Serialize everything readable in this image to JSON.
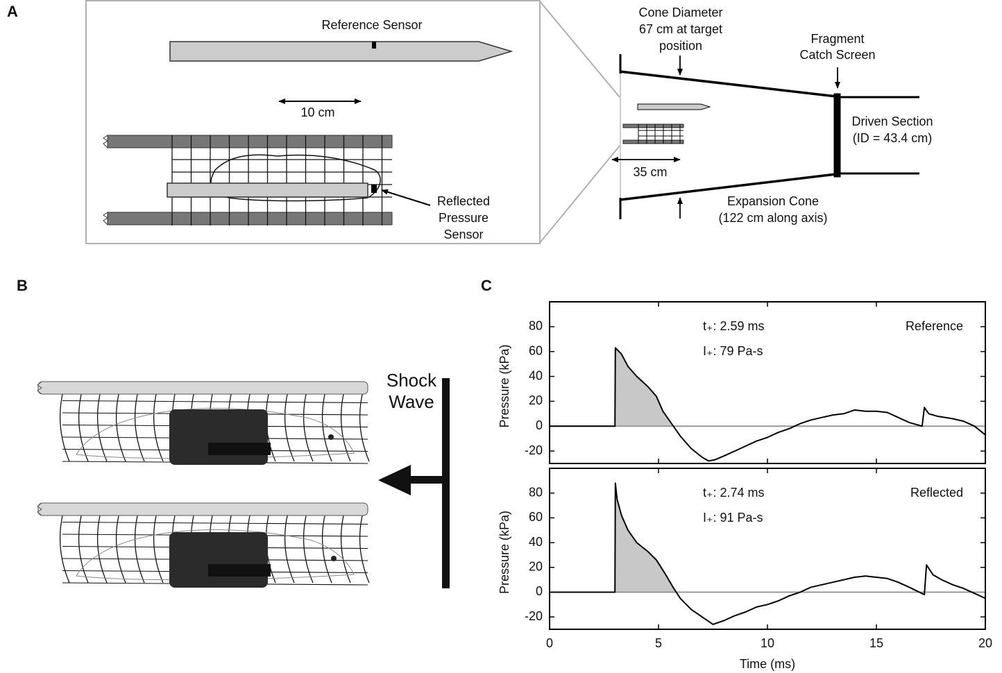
{
  "panels": {
    "a": {
      "label": "A",
      "reference_sensor": "Reference  Sensor",
      "scale_short": "10 cm",
      "reflected_sensor": [
        "Reflected",
        "Pressure",
        "Sensor"
      ],
      "cone_diameter": [
        "Cone Diameter",
        "67 cm at target",
        "position"
      ],
      "fragment_screen": [
        "Fragment",
        "Catch Screen"
      ],
      "driven_section": [
        "Driven Section",
        "(ID = 43.4 cm)"
      ],
      "scale_long": "35 cm",
      "expansion_cone": [
        "Expansion Cone",
        "(122 cm along axis)"
      ]
    },
    "b": {
      "label": "B",
      "shock_wave": [
        "Shock",
        "Wave"
      ]
    },
    "c": {
      "label": "C"
    }
  },
  "chart_data": [
    {
      "type": "line",
      "ylabel": "Pressure (kPa)",
      "annotations": [
        "t₊: 2.59 ms",
        "I₊: 79 Pa-s"
      ],
      "x": [
        0,
        1,
        2,
        3,
        3.02,
        3.3,
        3.6,
        4,
        4.5,
        4.9,
        5.2,
        5.6,
        6,
        6.5,
        7,
        7.3,
        7.6,
        8,
        8.5,
        9,
        9.5,
        10,
        10.5,
        11,
        11.5,
        12,
        12.5,
        13,
        13.5,
        14,
        14.5,
        15,
        15.5,
        16,
        16.5,
        17.1,
        17.2,
        17.4,
        17.8,
        18.5,
        19,
        19.5,
        20
      ],
      "series": [
        {
          "name": "Reference",
          "color": "#000000",
          "values": [
            0,
            0,
            0,
            0,
            63,
            58,
            48,
            40,
            32,
            24,
            12,
            2,
            -8,
            -18,
            -25,
            -28,
            -27,
            -24,
            -20,
            -16,
            -12,
            -9,
            -5,
            -2,
            2,
            5,
            7,
            9,
            10,
            13,
            12,
            12,
            11,
            7,
            3,
            0,
            15,
            10,
            8,
            6,
            4,
            0,
            -7
          ]
        }
      ],
      "fill_color": "#c8c8c8",
      "xlim": [
        0,
        20
      ],
      "ylim": [
        -30,
        100
      ],
      "yticks": [
        -20,
        0,
        20,
        40,
        60,
        80
      ]
    },
    {
      "type": "line",
      "ylabel": "Pressure (kPa)",
      "xlabel": "Time (ms)",
      "annotations": [
        "t₊: 2.74 ms",
        "I₊: 91 Pa-s"
      ],
      "x": [
        0,
        1,
        2,
        3,
        3.02,
        3.1,
        3.3,
        3.6,
        4,
        4.5,
        4.9,
        5.3,
        5.7,
        6,
        6.5,
        7,
        7.5,
        8,
        8.5,
        9,
        9.5,
        10,
        10.5,
        11,
        11.5,
        12,
        12.5,
        13,
        13.5,
        14,
        14.5,
        15,
        15.5,
        16,
        16.5,
        17.2,
        17.3,
        17.6,
        18,
        18.5,
        19,
        19.5,
        20
      ],
      "series": [
        {
          "name": "Reflected",
          "color": "#000000",
          "values": [
            0,
            0,
            0,
            0,
            88,
            75,
            62,
            50,
            40,
            33,
            26,
            15,
            3,
            -5,
            -14,
            -20,
            -26,
            -23,
            -19,
            -16,
            -12,
            -10,
            -7,
            -3,
            0,
            4,
            6,
            8,
            10,
            12,
            13,
            12,
            11,
            8,
            4,
            -2,
            22,
            14,
            10,
            6,
            3,
            -1,
            -5
          ]
        }
      ],
      "fill_color": "#c8c8c8",
      "xlim": [
        0,
        20
      ],
      "ylim": [
        -30,
        100
      ],
      "yticks": [
        -20,
        0,
        20,
        40,
        60,
        80
      ],
      "xticks": [
        0,
        5,
        10,
        15,
        20
      ]
    }
  ]
}
